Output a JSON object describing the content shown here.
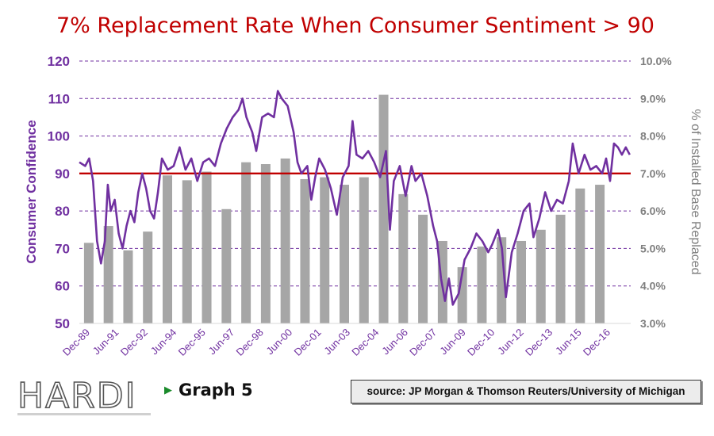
{
  "chart_data": {
    "type": "bar+line",
    "title": "7% Replacement Rate When Consumer Sentiment > 90",
    "ylabel_left": "Consumer Confidence",
    "ylabel_right": "% of Installed Base Replaced",
    "ylim_left": [
      50,
      120
    ],
    "yticks_left": [
      "50",
      "60",
      "70",
      "80",
      "90",
      "100",
      "110",
      "120"
    ],
    "ylim_right": [
      3.0,
      10.0
    ],
    "yticks_right": [
      "3.0%",
      "4.0%",
      "5.0%",
      "6.0%",
      "7.0%",
      "8.0%",
      "9.0%",
      "10.0%"
    ],
    "x_start": "Dec-89",
    "x_end": "Dec-17",
    "x_tick_labels": [
      "Dec-89",
      "Jun-91",
      "Dec-92",
      "Jun-94",
      "Dec-95",
      "Jun-97",
      "Dec-98",
      "Jun-00",
      "Dec-01",
      "Jun-03",
      "Dec-04",
      "Jun-06",
      "Dec-07",
      "Jun-09",
      "Dec-10",
      "Jun-12",
      "Dec-13",
      "Jun-15",
      "Dec-16"
    ],
    "reference_line": {
      "value": 90,
      "axis": "left",
      "color": "#c00000"
    },
    "bar_color": "#a6a6a6",
    "line_color": "#7030a0",
    "bars": [
      {
        "year": 1990,
        "value": 5.15
      },
      {
        "year": 1991,
        "value": 5.6
      },
      {
        "year": 1992,
        "value": 4.95
      },
      {
        "year": 1993,
        "value": 5.45
      },
      {
        "year": 1994,
        "value": 6.95
      },
      {
        "year": 1995,
        "value": 6.82
      },
      {
        "year": 1996,
        "value": 7.05
      },
      {
        "year": 1997,
        "value": 6.05
      },
      {
        "year": 1998,
        "value": 7.3
      },
      {
        "year": 1999,
        "value": 7.25
      },
      {
        "year": 2000,
        "value": 7.4
      },
      {
        "year": 2001,
        "value": 6.85
      },
      {
        "year": 2002,
        "value": 6.9
      },
      {
        "year": 2003,
        "value": 6.7
      },
      {
        "year": 2004,
        "value": 6.9
      },
      {
        "year": 2005,
        "value": 9.1
      },
      {
        "year": 2006,
        "value": 6.45
      },
      {
        "year": 2007,
        "value": 5.9
      },
      {
        "year": 2008,
        "value": 5.2
      },
      {
        "year": 2009,
        "value": 4.5
      },
      {
        "year": 2010,
        "value": 5.05
      },
      {
        "year": 2011,
        "value": 5.3
      },
      {
        "year": 2012,
        "value": 5.2
      },
      {
        "year": 2013,
        "value": 5.5
      },
      {
        "year": 2014,
        "value": 5.9
      },
      {
        "year": 2015,
        "value": 6.6
      },
      {
        "year": 2016,
        "value": 6.7
      }
    ],
    "line": [
      {
        "x": 1989.9,
        "y": 93
      },
      {
        "x": 1990.2,
        "y": 92
      },
      {
        "x": 1990.4,
        "y": 94
      },
      {
        "x": 1990.6,
        "y": 88
      },
      {
        "x": 1990.8,
        "y": 72
      },
      {
        "x": 1991.0,
        "y": 66
      },
      {
        "x": 1991.2,
        "y": 72
      },
      {
        "x": 1991.35,
        "y": 87
      },
      {
        "x": 1991.5,
        "y": 80
      },
      {
        "x": 1991.7,
        "y": 83
      },
      {
        "x": 1991.9,
        "y": 74
      },
      {
        "x": 1992.1,
        "y": 70
      },
      {
        "x": 1992.3,
        "y": 76
      },
      {
        "x": 1992.5,
        "y": 80
      },
      {
        "x": 1992.7,
        "y": 77
      },
      {
        "x": 1992.9,
        "y": 85
      },
      {
        "x": 1993.1,
        "y": 90
      },
      {
        "x": 1993.3,
        "y": 86
      },
      {
        "x": 1993.5,
        "y": 80
      },
      {
        "x": 1993.7,
        "y": 78
      },
      {
        "x": 1993.9,
        "y": 85
      },
      {
        "x": 1994.1,
        "y": 94
      },
      {
        "x": 1994.4,
        "y": 91
      },
      {
        "x": 1994.7,
        "y": 92
      },
      {
        "x": 1995.0,
        "y": 97
      },
      {
        "x": 1995.3,
        "y": 91
      },
      {
        "x": 1995.6,
        "y": 94
      },
      {
        "x": 1995.9,
        "y": 88
      },
      {
        "x": 1996.2,
        "y": 93
      },
      {
        "x": 1996.5,
        "y": 94
      },
      {
        "x": 1996.8,
        "y": 92
      },
      {
        "x": 1997.1,
        "y": 98
      },
      {
        "x": 1997.4,
        "y": 102
      },
      {
        "x": 1997.7,
        "y": 105
      },
      {
        "x": 1998.0,
        "y": 107
      },
      {
        "x": 1998.2,
        "y": 110
      },
      {
        "x": 1998.4,
        "y": 105
      },
      {
        "x": 1998.7,
        "y": 101
      },
      {
        "x": 1998.9,
        "y": 96
      },
      {
        "x": 1999.2,
        "y": 105
      },
      {
        "x": 1999.5,
        "y": 106
      },
      {
        "x": 1999.8,
        "y": 105
      },
      {
        "x": 2000.0,
        "y": 112
      },
      {
        "x": 2000.2,
        "y": 110
      },
      {
        "x": 2000.5,
        "y": 108
      },
      {
        "x": 2000.8,
        "y": 101
      },
      {
        "x": 2001.0,
        "y": 93
      },
      {
        "x": 2001.2,
        "y": 90
      },
      {
        "x": 2001.5,
        "y": 92
      },
      {
        "x": 2001.7,
        "y": 83
      },
      {
        "x": 2001.9,
        "y": 89
      },
      {
        "x": 2002.1,
        "y": 94
      },
      {
        "x": 2002.4,
        "y": 91
      },
      {
        "x": 2002.7,
        "y": 86
      },
      {
        "x": 2003.0,
        "y": 79
      },
      {
        "x": 2003.3,
        "y": 89
      },
      {
        "x": 2003.6,
        "y": 92
      },
      {
        "x": 2003.8,
        "y": 104
      },
      {
        "x": 2004.0,
        "y": 95
      },
      {
        "x": 2004.3,
        "y": 94
      },
      {
        "x": 2004.6,
        "y": 96
      },
      {
        "x": 2004.9,
        "y": 93
      },
      {
        "x": 2005.2,
        "y": 89
      },
      {
        "x": 2005.5,
        "y": 96
      },
      {
        "x": 2005.7,
        "y": 75
      },
      {
        "x": 2005.9,
        "y": 88
      },
      {
        "x": 2006.2,
        "y": 92
      },
      {
        "x": 2006.5,
        "y": 84
      },
      {
        "x": 2006.8,
        "y": 92
      },
      {
        "x": 2007.0,
        "y": 88
      },
      {
        "x": 2007.3,
        "y": 90
      },
      {
        "x": 2007.6,
        "y": 84
      },
      {
        "x": 2007.9,
        "y": 76
      },
      {
        "x": 2008.1,
        "y": 72
      },
      {
        "x": 2008.3,
        "y": 62
      },
      {
        "x": 2008.5,
        "y": 56
      },
      {
        "x": 2008.7,
        "y": 62
      },
      {
        "x": 2008.9,
        "y": 55
      },
      {
        "x": 2009.2,
        "y": 58
      },
      {
        "x": 2009.5,
        "y": 67
      },
      {
        "x": 2009.8,
        "y": 70
      },
      {
        "x": 2010.1,
        "y": 74
      },
      {
        "x": 2010.4,
        "y": 72
      },
      {
        "x": 2010.7,
        "y": 69
      },
      {
        "x": 2010.9,
        "y": 71
      },
      {
        "x": 2011.2,
        "y": 75
      },
      {
        "x": 2011.4,
        "y": 70
      },
      {
        "x": 2011.6,
        "y": 57
      },
      {
        "x": 2011.9,
        "y": 69
      },
      {
        "x": 2012.2,
        "y": 74
      },
      {
        "x": 2012.5,
        "y": 80
      },
      {
        "x": 2012.8,
        "y": 82
      },
      {
        "x": 2013.0,
        "y": 73
      },
      {
        "x": 2013.3,
        "y": 78
      },
      {
        "x": 2013.6,
        "y": 85
      },
      {
        "x": 2013.9,
        "y": 80
      },
      {
        "x": 2014.2,
        "y": 83
      },
      {
        "x": 2014.5,
        "y": 82
      },
      {
        "x": 2014.8,
        "y": 88
      },
      {
        "x": 2015.0,
        "y": 98
      },
      {
        "x": 2015.3,
        "y": 90
      },
      {
        "x": 2015.6,
        "y": 95
      },
      {
        "x": 2015.9,
        "y": 91
      },
      {
        "x": 2016.2,
        "y": 92
      },
      {
        "x": 2016.5,
        "y": 90
      },
      {
        "x": 2016.7,
        "y": 94
      },
      {
        "x": 2016.9,
        "y": 88
      },
      {
        "x": 2017.1,
        "y": 98
      },
      {
        "x": 2017.3,
        "y": 97
      },
      {
        "x": 2017.5,
        "y": 95
      },
      {
        "x": 2017.7,
        "y": 97
      },
      {
        "x": 2017.9,
        "y": 95
      }
    ]
  },
  "footer": {
    "graph_label": "Graph 5",
    "source": "source: JP Morgan & Thomson Reuters/University of Michigan",
    "logo_text": "HARDI"
  },
  "colors": {
    "title": "#c00000",
    "axis_left_text": "#7030a0",
    "axis_right_text": "#7f7f7f",
    "grid": "#7030a0"
  }
}
